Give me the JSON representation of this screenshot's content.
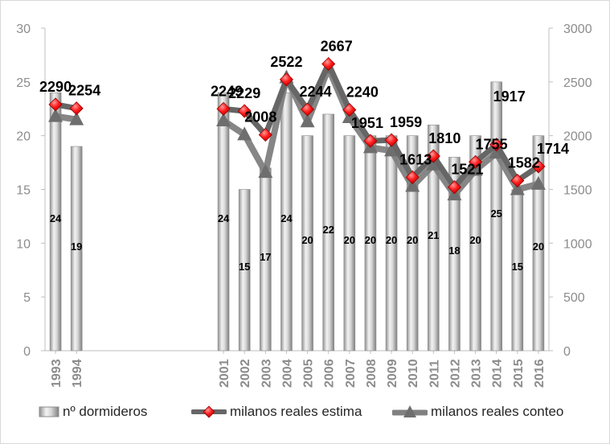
{
  "chart_data": {
    "type": "bar+line",
    "categories": [
      "1993",
      "1994",
      "",
      "",
      "",
      "",
      "",
      "",
      "2001",
      "2002",
      "2003",
      "2004",
      "2005",
      "2006",
      "2007",
      "2008",
      "2009",
      "2010",
      "2011",
      "2012",
      "2013",
      "2014",
      "2015",
      "2016"
    ],
    "y_left": {
      "ticks": [
        "0",
        "5",
        "10",
        "15",
        "20",
        "25",
        "30"
      ],
      "ylim": [
        0,
        30
      ]
    },
    "y_right": {
      "ticks": [
        "0",
        "500",
        "1000",
        "1500",
        "2000",
        "2500",
        "3000"
      ],
      "ylim": [
        0,
        3000
      ]
    },
    "series": [
      {
        "name": "nº dormideros",
        "type": "bar",
        "axis": "left",
        "color": "#bfbfbf",
        "values": [
          24,
          19,
          null,
          null,
          null,
          null,
          null,
          null,
          24,
          15,
          17,
          24,
          20,
          22,
          20,
          20,
          20,
          20,
          21,
          18,
          20,
          25,
          15,
          20
        ],
        "labels": [
          "24",
          "19",
          "",
          "",
          "",
          "",
          "",
          "",
          "24",
          "15",
          "17",
          "24",
          "20",
          "22",
          "20",
          "20",
          "20",
          "20",
          "21",
          "18",
          "20",
          "25",
          "15",
          "20"
        ]
      },
      {
        "name": "milanos reales estima",
        "type": "line",
        "axis": "right",
        "color": "#666666",
        "marker": "diamond",
        "marker_color": "#ff0000",
        "values": [
          2290,
          2254,
          null,
          null,
          null,
          null,
          null,
          null,
          2249,
          2229,
          2008,
          2522,
          2244,
          2667,
          2240,
          1951,
          1959,
          1613,
          1810,
          1521,
          1755,
          1917,
          1582,
          1714
        ],
        "labels": [
          "2290",
          "2254",
          "",
          "",
          "",
          "",
          "",
          "",
          "2249",
          "2229",
          "2008",
          "2522",
          "2244",
          "2667",
          "2240",
          "1951",
          "1959",
          "1613",
          "1810",
          "1521",
          "1755",
          "1917",
          "1582",
          "1714"
        ]
      },
      {
        "name": "milanos reales conteo",
        "type": "line",
        "axis": "right",
        "color": "#808080",
        "marker": "triangle",
        "values": [
          2180,
          2150,
          null,
          null,
          null,
          null,
          null,
          null,
          2140,
          2010,
          1660,
          2540,
          2130,
          2630,
          2170,
          1890,
          1860,
          1530,
          1730,
          1450,
          1680,
          1840,
          1500,
          1550
        ]
      }
    ],
    "legend": {
      "position": "bottom"
    },
    "grid": false
  }
}
